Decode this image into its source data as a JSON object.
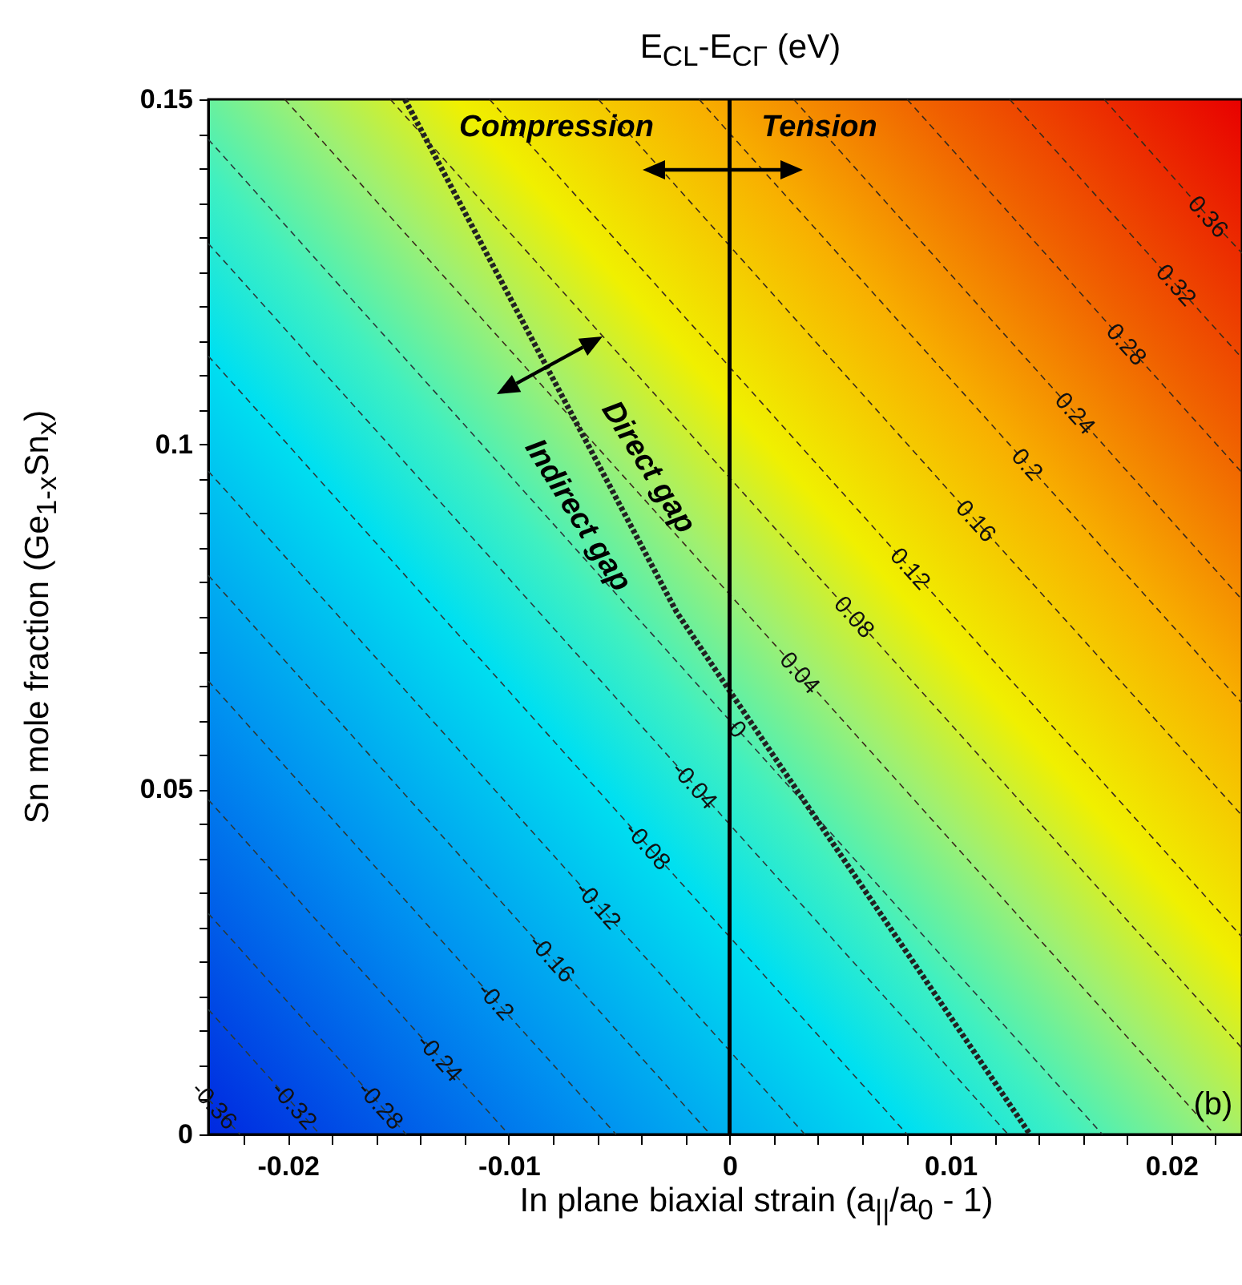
{
  "chart_data": {
    "type": "line",
    "title": "E$_{CL}$-E$_{CΓ}$ (eV)",
    "xlabel": "In plane biaxial strain (a$_{||}$/a$_{0}$ - 1)",
    "ylabel": "Sn mole fraction (Ge$_{1-x}$Sn$_{x}$)",
    "xlim": [
      -0.0236,
      0.0232
    ],
    "ylim": [
      0,
      0.15
    ],
    "xticks": [
      {
        "value": -0.022,
        "label": null
      },
      -0.02,
      {
        "value": -0.018,
        "label": null
      },
      {
        "value": -0.016,
        "label": null
      },
      {
        "value": -0.014,
        "label": null
      },
      {
        "value": -0.012,
        "label": null
      },
      -0.01,
      {
        "value": -0.008,
        "label": null
      },
      {
        "value": -0.006,
        "label": null
      },
      {
        "value": -0.004,
        "label": null
      },
      {
        "value": -0.002,
        "label": null
      },
      0,
      {
        "value": 0.002,
        "label": null
      },
      {
        "value": 0.004,
        "label": null
      },
      {
        "value": 0.006,
        "label": null
      },
      {
        "value": 0.008,
        "label": null
      },
      0.01,
      {
        "value": 0.012,
        "label": null
      },
      {
        "value": 0.014,
        "label": null
      },
      {
        "value": 0.016,
        "label": null
      },
      {
        "value": 0.018,
        "label": null
      },
      0.02,
      {
        "value": 0.022,
        "label": null
      }
    ],
    "yticks": [
      0,
      {
        "value": 0.005,
        "label": null
      },
      {
        "value": 0.01,
        "label": null
      },
      {
        "value": 0.015,
        "label": null
      },
      {
        "value": 0.02,
        "label": null
      },
      {
        "value": 0.025,
        "label": null
      },
      {
        "value": 0.03,
        "label": null
      },
      {
        "value": 0.035,
        "label": null
      },
      {
        "value": 0.04,
        "label": null
      },
      {
        "value": 0.045,
        "label": null
      },
      0.05,
      {
        "value": 0.055,
        "label": null
      },
      {
        "value": 0.06,
        "label": null
      },
      {
        "value": 0.065,
        "label": null
      },
      {
        "value": 0.07,
        "label": null
      },
      {
        "value": 0.075,
        "label": null
      },
      {
        "value": 0.08,
        "label": null
      },
      {
        "value": 0.085,
        "label": null
      },
      {
        "value": 0.09,
        "label": null
      },
      {
        "value": 0.095,
        "label": null
      },
      0.1,
      {
        "value": 0.105,
        "label": null
      },
      {
        "value": 0.11,
        "label": null
      },
      {
        "value": 0.115,
        "label": null
      },
      {
        "value": 0.12,
        "label": null
      },
      {
        "value": 0.125,
        "label": null
      },
      {
        "value": 0.13,
        "label": null
      },
      {
        "value": 0.135,
        "label": null
      },
      {
        "value": 0.14,
        "label": null
      },
      {
        "value": 0.145,
        "label": null
      },
      0.15
    ],
    "line_style": "dashed",
    "grid": false,
    "ref_lines": [
      {
        "axis": "x",
        "value": 0,
        "color": "#000000",
        "line_style": "solid"
      }
    ],
    "annotations": [
      {
        "text": "Compression",
        "x": 0,
        "y": 0.1398
      },
      {
        "text": "Tension",
        "x": 0,
        "y": 0.1398
      },
      "Direct gap",
      "Indirect gap",
      "(b)"
    ],
    "series": [
      {
        "name": "0.36",
        "color": "#3a2a1a",
        "x": [
          0.01696,
          0.02167,
          0.0232
        ],
        "values": [
          0.15,
          0.133,
          0.1277
        ]
      },
      {
        "name": "0.32",
        "color": "#3a2a1a",
        "x": [
          0.01268,
          0.02022,
          0.0232
        ],
        "values": [
          0.15,
          0.1231,
          0.1125
        ]
      },
      {
        "name": "0.28",
        "color": "#3a2a1a",
        "x": [
          0.00804,
          0.01797,
          0.0232
        ],
        "values": [
          0.15,
          0.1145,
          0.0959
        ]
      },
      {
        "name": "0.24",
        "color": "#3a2a1a",
        "x": [
          0.0029,
          0.01565,
          0.0232
        ],
        "values": [
          0.15,
          0.1045,
          0.0775
        ]
      },
      {
        "name": "0.2",
        "color": "#3a2a1a",
        "x": [
          -0.00138,
          0.01348,
          0.0232
        ],
        "values": [
          0.15,
          0.0971,
          0.0625
        ]
      },
      {
        "name": "0.16",
        "color": "#3a2a1a",
        "x": [
          -0.00594,
          0.01116,
          0.0232
        ],
        "values": [
          0.15,
          0.0889,
          0.0462
        ]
      },
      {
        "name": "0.12",
        "color": "#3a2a1a",
        "x": [
          -0.01087,
          0.00819,
          0.0232
        ],
        "values": [
          0.15,
          0.082,
          0.0286
        ]
      },
      {
        "name": "0.08",
        "color": "#3a2a1a",
        "x": [
          -0.01536,
          0.00565,
          0.0232
        ],
        "values": [
          0.15,
          0.075,
          0.0125
        ]
      },
      {
        "name": "0.04",
        "color": "#3a2a1a",
        "x": [
          -0.02014,
          0.00319,
          0.02196
        ],
        "values": [
          0.15,
          0.0669,
          0
        ]
      },
      {
        "name": "0",
        "color": "#2a3a3a",
        "x": [
          -0.0236,
          0.00036,
          0.01688
        ],
        "values": [
          0.1442,
          0.0587,
          0
        ]
      },
      {
        "name": "-0.04",
        "color": "#2a3a3a",
        "x": [
          -0.0236,
          -0.00159,
          0.01261
        ],
        "values": [
          0.1291,
          0.0506,
          0
        ]
      },
      {
        "name": "-0.08",
        "color": "#2a3a3a",
        "x": [
          -0.0236,
          -0.0037,
          0.00804
        ],
        "values": [
          0.1128,
          0.0418,
          0
        ]
      },
      {
        "name": "-0.12",
        "color": "#2a3a3a",
        "x": [
          -0.0236,
          -0.00594,
          0.00341
        ],
        "values": [
          0.0961,
          0.0332,
          0
        ]
      },
      {
        "name": "-0.16",
        "color": "#2a3a3a",
        "x": [
          -0.0236,
          -0.00804,
          -0.00087
        ],
        "values": [
          0.081,
          0.0255,
          0
        ]
      },
      {
        "name": "-0.2",
        "color": "#2a3a3a",
        "x": [
          -0.0236,
          -0.01058,
          -0.00514
        ],
        "values": [
          0.0657,
          0.0193,
          0
        ]
      },
      {
        "name": "-0.24",
        "color": "#2a3a3a",
        "x": [
          -0.0236,
          -0.01312,
          -0.01
        ],
        "values": [
          0.0485,
          0.0111,
          0
        ]
      },
      {
        "name": "-0.28",
        "color": "#2a3a3a",
        "x": [
          -0.0236,
          -0.0158,
          -0.01464
        ],
        "values": [
          0.032,
          0.0042,
          0
        ]
      },
      {
        "name": "-0.32",
        "color": "#2a3a3a",
        "x": [
          -0.0236,
          -0.01971,
          -0.01855
        ],
        "values": [
          0.0181,
          0.0042,
          0
        ]
      },
      {
        "name": "-0.36",
        "color": "#2a3a3a",
        "x": [
          -0.0236,
          -0.02333,
          -0.02217
        ],
        "values": [
          0.0051,
          0.0042,
          0
        ]
      },
      {
        "color": "#222222",
        "line_style": "dotted",
        "x": [
          -0.0147,
          -0.0024,
          0.0001,
          0.0136
        ],
        "values": [
          0.15,
          0.0757,
          0.0638,
          0
        ]
      }
    ]
  }
}
